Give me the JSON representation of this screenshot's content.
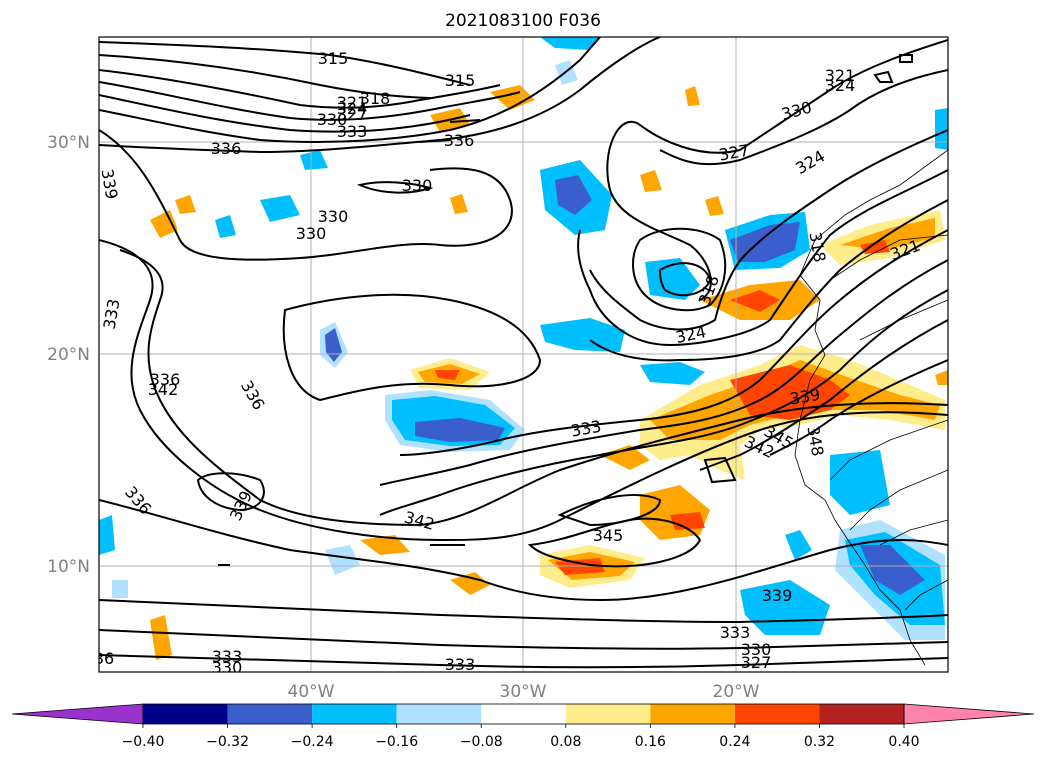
{
  "title": "2021083100 F036",
  "map": {
    "latitudes": [
      "10°N",
      "20°N",
      "30°N"
    ],
    "longitudes": [
      "40°W",
      "30°W",
      "20°W"
    ]
  },
  "colorbar": {
    "ticks": [
      "−0.40",
      "−0.32",
      "−0.24",
      "−0.16",
      "−0.08",
      "0.08",
      "0.16",
      "0.24",
      "0.32",
      "0.40"
    ],
    "colors": [
      "#9a32cd",
      "#00008b",
      "#3a5fcd",
      "#00bfff",
      "#b0e2ff",
      "#ffffff",
      "#ffec8b",
      "#ffa500",
      "#ff4500",
      "#b22222",
      "#ff82ab"
    ]
  },
  "contour_labels": [
    "315",
    "315",
    "318",
    "321",
    "324",
    "327",
    "330",
    "333",
    "336",
    "336",
    "330",
    "330",
    "330",
    "336",
    "339",
    "333",
    "342",
    "336",
    "336",
    "339",
    "342",
    "333",
    "345",
    "327",
    "330",
    "324",
    "321",
    "318",
    "318",
    "324",
    "339",
    "345",
    "342",
    "348",
    "339",
    "333",
    "330",
    "327",
    "333",
    "333",
    "330",
    "36",
    "321",
    "324"
  ]
}
